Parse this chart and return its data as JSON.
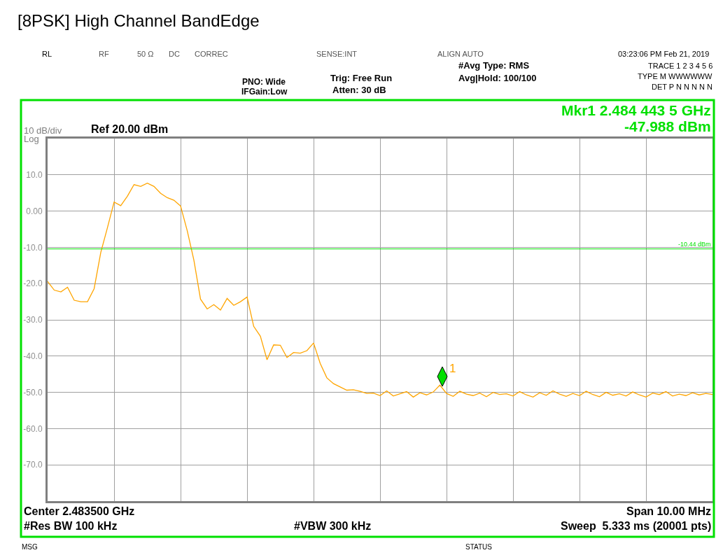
{
  "chart_data": {
    "type": "line",
    "title": "[8PSK] High Channel BandEdge",
    "categories": [
      null,
      null,
      null,
      null,
      null,
      null,
      null,
      null,
      null,
      null,
      null,
      null,
      null,
      null,
      null,
      null,
      null,
      null,
      null,
      null,
      null,
      null,
      null,
      null,
      null,
      null,
      null,
      null,
      null,
      null,
      null,
      null,
      null,
      null,
      null,
      null,
      null,
      null,
      null,
      null,
      null,
      null,
      null,
      null,
      null,
      null,
      null,
      null,
      null,
      null,
      null,
      null,
      null,
      null,
      null,
      null,
      null,
      null,
      null,
      null,
      null,
      null,
      null,
      null,
      null,
      null,
      null,
      null,
      null,
      null,
      null,
      null,
      null,
      null,
      null,
      null,
      null,
      null,
      null,
      null,
      null,
      null,
      null,
      null,
      null,
      null,
      null,
      null,
      null,
      null,
      null,
      null,
      null,
      null,
      null,
      null,
      null,
      null,
      null,
      null,
      null
    ],
    "ylim": [
      -80,
      20
    ],
    "yticks": [
      {
        "value": 20,
        "label": null
      },
      {
        "value": 10,
        "label": "10.0"
      },
      {
        "value": 0,
        "label": "0.00"
      },
      {
        "value": -10,
        "label": "-10.0"
      },
      {
        "value": -20,
        "label": "-20.0"
      },
      {
        "value": -30,
        "label": "-30.0"
      },
      {
        "value": -40,
        "label": "-40.0"
      },
      {
        "value": -50,
        "label": "-50.0"
      },
      {
        "value": -60,
        "label": "-60.0"
      },
      {
        "value": -70,
        "label": "-70.0"
      },
      {
        "value": -80,
        "label": null
      }
    ],
    "tick_labels": "y",
    "grid": true,
    "ref_lines": [
      {
        "axis": "y",
        "value": -10.44,
        "label": "-10.44 dBm",
        "color": "#00e000"
      }
    ],
    "series": [
      {
        "color": "#ffa500",
        "values": [
          -19.4,
          -21.8,
          -22.3,
          -21.0,
          -24.6,
          -25.0,
          -25.0,
          -21.4,
          -11.4,
          -4.6,
          2.5,
          1.5,
          4.1,
          7.3,
          6.8,
          7.7,
          6.8,
          4.9,
          3.7,
          3.0,
          1.4,
          -5.4,
          -13.5,
          -24.3,
          -27.0,
          -25.8,
          -27.3,
          -24.1,
          -26.0,
          -25.0,
          -23.7,
          -31.8,
          -34.5,
          -41.0,
          -36.9,
          -37.0,
          -40.4,
          -39.0,
          -39.2,
          -38.5,
          -36.4,
          -42.0,
          -46.0,
          -47.6,
          -48.5,
          -49.4,
          -49.3,
          -49.7,
          -50.3,
          -50.2,
          -50.9,
          -49.6,
          -51.0,
          -50.4,
          -49.8,
          -51.3,
          -50.1,
          -50.7,
          -49.9,
          -48.0,
          -50.3,
          -51.1,
          -49.7,
          -50.5,
          -50.9,
          -50.2,
          -51.2,
          -50.0,
          -50.6,
          -50.4,
          -51.0,
          -49.8,
          -50.7,
          -51.3,
          -50.1,
          -50.8,
          -49.6,
          -50.5,
          -51.1,
          -50.3,
          -50.9,
          -49.7,
          -50.6,
          -51.2,
          -50.0,
          -50.8,
          -50.4,
          -51.0,
          -49.9,
          -50.7,
          -51.3,
          -50.2,
          -50.6,
          -49.8,
          -51.0,
          -50.5,
          -50.9,
          -50.1,
          -50.7,
          -50.3,
          -50.6
        ]
      }
    ],
    "annotations": [
      "03:23:06 PM Feb 21, 2019",
      "RL",
      "RF",
      "50 Ω",
      "DC",
      "CORREC",
      "SENSE:INT",
      "ALIGN AUTO",
      "PNO: Wide",
      "IFGain:Low",
      "Trig: Free Run",
      "Atten: 30 dB",
      "#Avg Type: RMS",
      "Avg|Hold: 100/100",
      "TRACE 1 2 3 4 5 6",
      "TYPE M WWWWWW",
      "DET P N N N N N",
      "Mkr1 2.484 443 5 GHz",
      "-47.988 dBm",
      "10 dB/div",
      "Log",
      "Ref 20.00 dBm",
      "Center 2.483500 GHz",
      "Span 10.00 MHz",
      "#Res BW 100 kHz",
      "#VBW 300 kHz",
      "Sweep  5.333 ms (20001 pts)",
      "MSG",
      "STATUS",
      "1"
    ]
  }
}
